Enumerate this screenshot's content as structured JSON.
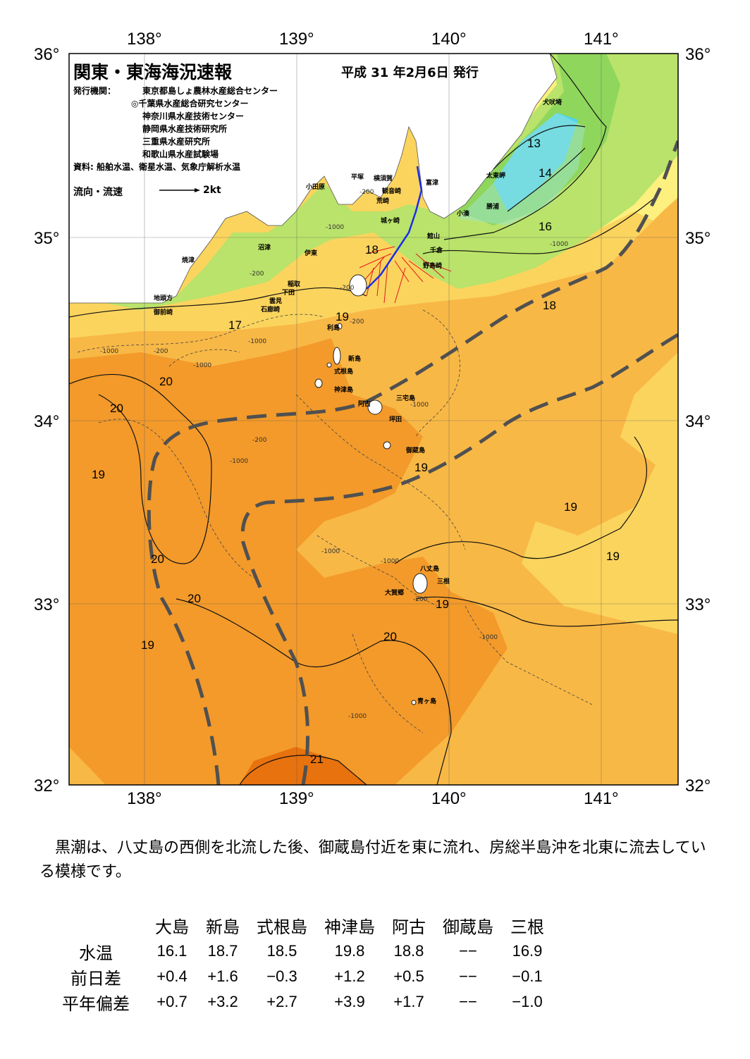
{
  "map": {
    "title": "関東・東海海況速報",
    "issue_date": "平成 31 年2月6日 発行",
    "agency_label": "発行機関：",
    "agencies": [
      "東京都島しょ農林水産総合センター",
      "◎千葉県水産総合研究センター",
      "神奈川県水産技術センター",
      "静岡県水産技術研究所",
      "三重県水産研究所",
      "和歌山県水産試験場"
    ],
    "source": "資料: 船舶水温、衛星水温、気象庁解析水温",
    "flow_legend_label": "流向・流速",
    "flow_legend_unit": "2kt",
    "lon_labels": [
      "138°",
      "139°",
      "140°",
      "141°"
    ],
    "lat_labels": [
      "36°",
      "35°",
      "34°",
      "33°",
      "32°"
    ],
    "isotherm_labels": [
      "13",
      "14",
      "16",
      "17",
      "18",
      "18",
      "19",
      "19",
      "19",
      "19",
      "19",
      "19",
      "19",
      "20",
      "20",
      "20",
      "20",
      "20",
      "21"
    ],
    "depth_labels": [
      "-200",
      "-1000",
      "-200",
      "-1000",
      "-200",
      "-1000",
      "-200",
      "-1000",
      "-1000",
      "-200",
      "-1000",
      "-1000",
      "-1000",
      "-200",
      "-1000",
      "-1000",
      "-200",
      "-1000"
    ],
    "places": [
      "犬吠埼",
      "太東岬",
      "勝浦",
      "小湊",
      "館山",
      "千倉",
      "野島崎",
      "富津",
      "横須賀",
      "観音崎",
      "平塚",
      "小田原",
      "荒崎",
      "城ヶ崎",
      "伊東",
      "沼津",
      "焼津",
      "稲取",
      "下田",
      "雲見",
      "石廊崎",
      "地頭方",
      "御前崎",
      "利島",
      "新島",
      "式根島",
      "神津島",
      "阿古",
      "三宅島",
      "坪田",
      "御蔵島",
      "八丈島",
      "三根",
      "大賀郷",
      "青ヶ島"
    ],
    "colors": {
      "deep_orange": "#e8720e",
      "orange": "#f39a2a",
      "light_orange": "#f8b846",
      "yellow": "#fbd45e",
      "pale_yellow": "#fdf07e",
      "light_green": "#b9e36a",
      "green": "#8fd65c",
      "cyan": "#4fd3ee",
      "light_cyan": "#9de6d4",
      "kuroshio_path": "#505050",
      "flow_vectors": "#e21a1a",
      "ship_track": "#1a2ee8"
    }
  },
  "summary_text": "　黒潮は、八丈島の西側を北流した後、御蔵島付近を東に流れ、房総半島沖を北東に流去している模様です。",
  "stats": {
    "columns": [
      "大島",
      "新島",
      "式根島",
      "神津島",
      "阿古",
      "御蔵島",
      "三根"
    ],
    "rows": [
      {
        "label": "水温",
        "values": [
          "16.1",
          "18.7",
          "18.5",
          "19.8",
          "18.8",
          "−−",
          "16.9"
        ]
      },
      {
        "label": "前日差",
        "values": [
          "+0.4",
          "+1.6",
          "−0.3",
          "+1.2",
          "+0.5",
          "−−",
          "−0.1"
        ]
      },
      {
        "label": "平年偏差",
        "values": [
          "+0.7",
          "+3.2",
          "+2.7",
          "+3.9",
          "+1.7",
          "−−",
          "−1.0"
        ]
      }
    ]
  }
}
